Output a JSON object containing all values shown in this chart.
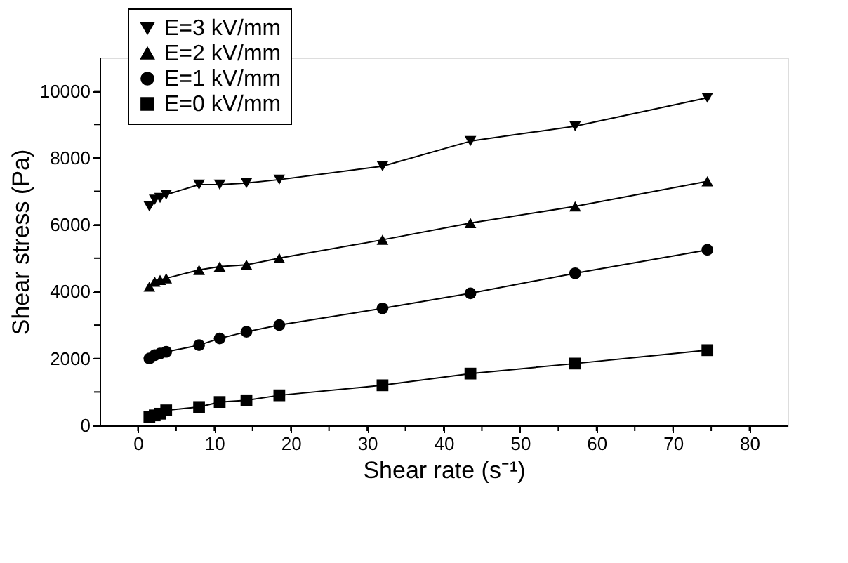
{
  "chart_data": {
    "type": "line",
    "xlabel": "Shear rate (s⁻¹)",
    "ylabel": "Shear stress (Pa)",
    "xlim": [
      -5,
      85
    ],
    "ylim": [
      0,
      11000
    ],
    "xticks": [
      0,
      {
        "value": 5,
        "label": null
      },
      10,
      {
        "value": 15,
        "label": null
      },
      20,
      {
        "value": 25,
        "label": null
      },
      30,
      {
        "value": 35,
        "label": null
      },
      40,
      {
        "value": 45,
        "label": null
      },
      50,
      {
        "value": 55,
        "label": null
      },
      60,
      {
        "value": 65,
        "label": null
      },
      70,
      {
        "value": 75,
        "label": null
      },
      80
    ],
    "yticks": [
      0,
      {
        "value": 1000,
        "label": null
      },
      2000,
      {
        "value": 3000,
        "label": null
      },
      4000,
      {
        "value": 5000,
        "label": null
      },
      6000,
      {
        "value": 7000,
        "label": null
      },
      8000,
      {
        "value": 9000,
        "label": null
      },
      10000
    ],
    "x": [
      1.5,
      2.2,
      2.9,
      3.7,
      8,
      10.7,
      14.2,
      18.5,
      32,
      43.5,
      57.2,
      74.5
    ],
    "grid": false,
    "legend": "top left",
    "line_style": "solid",
    "series": [
      {
        "name": "E=3 kV/mm",
        "color": "#000000",
        "marker": "triangle-down",
        "values": [
          6550,
          6750,
          6800,
          6900,
          7200,
          7200,
          7250,
          7350,
          7750,
          8500,
          8950,
          9800
        ]
      },
      {
        "name": "E=2 kV/mm",
        "color": "#000000",
        "marker": "triangle",
        "values": [
          4150,
          4300,
          4350,
          4400,
          4650,
          4750,
          4800,
          5000,
          5550,
          6050,
          6550,
          7300
        ]
      },
      {
        "name": "E=1 kV/mm",
        "color": "#000000",
        "marker": "circle",
        "values": [
          2000,
          2100,
          2150,
          2200,
          2400,
          2600,
          2800,
          3000,
          3500,
          3950,
          4550,
          5250
        ]
      },
      {
        "name": "E=0 kV/mm",
        "color": "#000000",
        "marker": "square",
        "values": [
          250,
          300,
          350,
          450,
          550,
          700,
          750,
          900,
          1200,
          1550,
          1850,
          2250
        ]
      }
    ]
  }
}
